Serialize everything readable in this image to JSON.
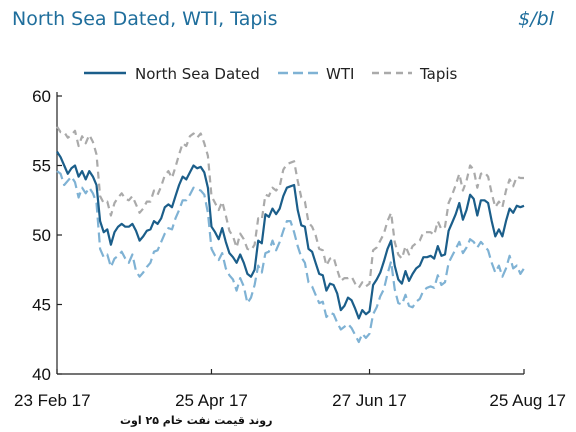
{
  "header": {
    "title": "North Sea Dated, WTI, Tapis",
    "unit": "$/bl"
  },
  "caption": "روند قیمت نفت خام ۲۵ اوت",
  "chart_data": {
    "type": "line",
    "title": "North Sea Dated, WTI, Tapis",
    "ylabel": "$/bl",
    "xlabel": "",
    "ylim": [
      40,
      60
    ],
    "yticks": [
      40,
      45,
      50,
      55,
      60
    ],
    "xticks": [
      "23 Feb 17",
      "25 Apr 17",
      "27 Jun 17",
      "25 Aug 17"
    ],
    "xtick_index": [
      0,
      43,
      87,
      130
    ],
    "grid": false,
    "legend_position": "top-center",
    "series": [
      {
        "name": "North Sea Dated",
        "color": "#1b5e8a",
        "dash": "solid",
        "values": [
          56.0,
          55.6,
          55.0,
          54.4,
          54.8,
          55.0,
          54.2,
          54.6,
          54.0,
          54.6,
          54.2,
          53.6,
          51.0,
          50.2,
          50.4,
          49.3,
          50.2,
          50.6,
          50.8,
          50.6,
          50.6,
          50.8,
          50.3,
          49.6,
          49.9,
          50.3,
          50.4,
          51.0,
          50.8,
          51.2,
          52.0,
          52.2,
          52.0,
          52.8,
          53.6,
          54.2,
          54.0,
          54.5,
          55.0,
          54.8,
          54.9,
          54.5,
          53.4,
          50.6,
          50.2,
          49.7,
          50.5,
          49.5,
          48.7,
          48.4,
          48.0,
          48.6,
          48.0,
          47.2,
          47.0,
          47.5,
          49.6,
          49.4,
          51.5,
          51.3,
          51.9,
          51.5,
          51.9,
          52.8,
          53.4,
          53.5,
          53.6,
          51.8,
          50.7,
          50.6,
          49.0,
          48.8,
          48.0,
          47.2,
          47.1,
          46.0,
          46.5,
          46.4,
          45.8,
          44.6,
          44.9,
          45.5,
          45.3,
          44.7,
          44.0,
          44.6,
          44.3,
          44.5,
          46.4,
          46.8,
          47.3,
          48.1,
          49.0,
          49.6,
          47.8,
          46.8,
          46.5,
          47.4,
          46.7,
          47.2,
          47.6,
          47.8,
          48.4,
          48.4,
          48.5,
          48.3,
          49.2,
          48.5,
          48.6,
          50.3,
          50.9,
          51.5,
          52.3,
          51.1,
          51.8,
          52.9,
          52.6,
          51.4,
          52.5,
          52.5,
          52.3,
          51.0,
          49.9,
          50.4,
          49.9,
          51.0,
          51.9,
          51.6,
          52.1,
          52.0,
          52.1
        ]
      },
      {
        "name": "WTI",
        "color": "#7fb2d4",
        "dash": "10,5",
        "values": [
          54.6,
          54.4,
          53.6,
          53.9,
          54.2,
          53.8,
          52.7,
          53.4,
          53.0,
          53.4,
          53.0,
          52.3,
          49.0,
          48.4,
          48.6,
          47.7,
          48.3,
          48.5,
          48.8,
          48.3,
          48.0,
          48.6,
          47.4,
          47.0,
          47.3,
          47.7,
          48.0,
          48.8,
          48.9,
          49.5,
          50.1,
          50.5,
          50.4,
          51.2,
          51.8,
          52.5,
          52.5,
          52.9,
          53.4,
          53.3,
          53.2,
          52.9,
          51.6,
          49.0,
          48.5,
          48.2,
          48.7,
          47.6,
          47.1,
          46.8,
          46.0,
          46.9,
          46.3,
          45.1,
          45.5,
          46.4,
          47.8,
          47.3,
          48.7,
          48.8,
          49.6,
          48.9,
          49.5,
          50.3,
          51.0,
          51.0,
          50.2,
          49.2,
          48.4,
          48.0,
          46.6,
          46.3,
          45.7,
          45.1,
          45.2,
          44.1,
          44.4,
          44.3,
          43.7,
          43.2,
          43.4,
          43.6,
          43.3,
          42.8,
          42.3,
          42.9,
          42.6,
          42.9,
          44.3,
          44.8,
          45.6,
          46.1,
          47.2,
          48.1,
          46.1,
          45.1,
          45.0,
          45.7,
          44.9,
          44.8,
          45.2,
          45.4,
          46.0,
          46.2,
          46.3,
          46.2,
          47.1,
          46.4,
          46.6,
          48.0,
          48.5,
          49.0,
          49.5,
          48.7,
          49.1,
          49.7,
          49.5,
          49.1,
          49.5,
          49.2,
          48.9,
          48.0,
          47.3,
          47.8,
          47.0,
          47.6,
          48.5,
          47.6,
          47.8,
          47.2,
          47.6
        ]
      },
      {
        "name": "Tapis",
        "color": "#aaaaaa",
        "dash": "7,5",
        "values": [
          57.8,
          57.4,
          57.4,
          57.0,
          57.2,
          57.5,
          56.4,
          57.1,
          56.6,
          57.2,
          56.7,
          55.8,
          52.8,
          52.3,
          52.4,
          51.4,
          52.3,
          52.7,
          53.0,
          52.6,
          52.5,
          52.8,
          52.2,
          51.6,
          51.9,
          52.4,
          52.4,
          53.2,
          52.9,
          53.5,
          54.3,
          54.6,
          54.1,
          54.9,
          55.8,
          56.6,
          56.4,
          57.1,
          57.3,
          57.0,
          57.3,
          56.6,
          55.7,
          52.8,
          52.3,
          51.8,
          52.4,
          51.4,
          50.3,
          49.9,
          49.1,
          50.1,
          49.7,
          49.0,
          48.9,
          49.3,
          51.2,
          51.1,
          52.9,
          52.8,
          53.4,
          53.2,
          53.5,
          54.7,
          55.1,
          55.2,
          55.3,
          53.9,
          52.7,
          52.4,
          50.9,
          50.6,
          50.0,
          49.0,
          48.9,
          47.8,
          48.3,
          48.4,
          47.5,
          46.7,
          46.9,
          46.9,
          47.0,
          46.5,
          46.2,
          46.6,
          46.3,
          46.5,
          48.9,
          49.1,
          49.6,
          50.1,
          51.0,
          51.6,
          49.5,
          48.6,
          48.3,
          49.2,
          48.6,
          49.2,
          49.4,
          49.6,
          50.2,
          50.2,
          50.2,
          50.0,
          51.0,
          50.4,
          50.6,
          52.3,
          52.9,
          53.6,
          54.4,
          53.2,
          53.9,
          55.0,
          54.7,
          53.4,
          54.4,
          54.5,
          54.2,
          53.0,
          52.0,
          52.4,
          52.0,
          53.2,
          54.0,
          53.5,
          54.2,
          54.1,
          54.1
        ]
      }
    ]
  }
}
